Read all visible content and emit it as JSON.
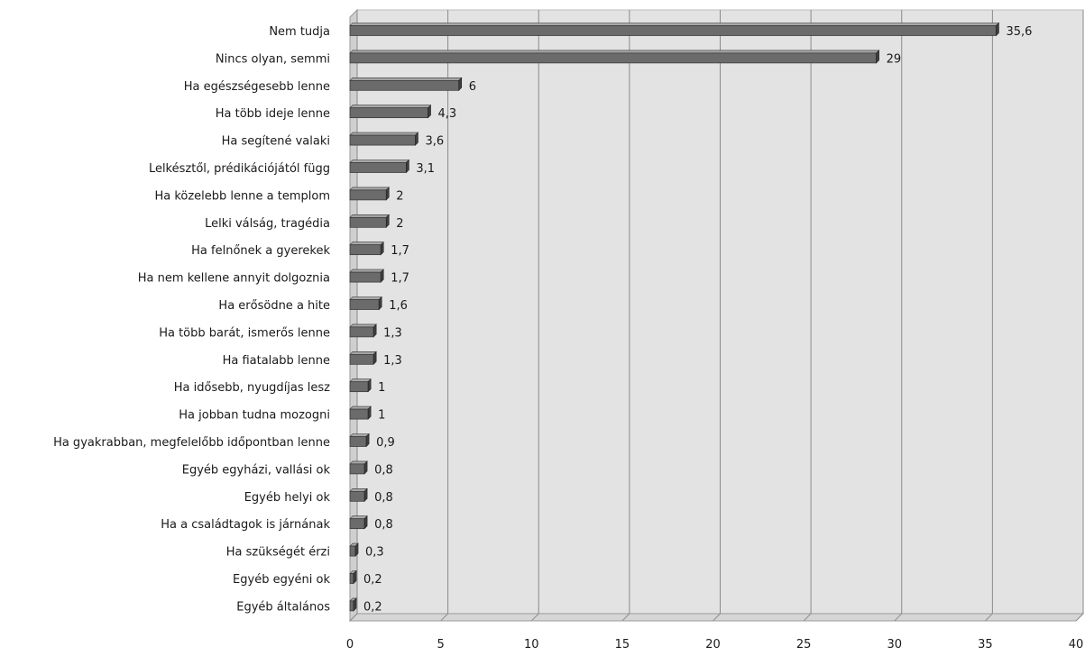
{
  "chart_data": {
    "type": "bar",
    "orientation": "horizontal",
    "categories": [
      "Nem tudja",
      "Nincs olyan, semmi",
      "Ha egészségesebb lenne",
      "Ha több ideje lenne",
      "Ha segítené valaki",
      "Lelkésztől, prédikációjától függ",
      "Ha közelebb lenne a templom",
      "Lelki válság, tragédia",
      "Ha felnőnek a gyerekek",
      "Ha nem kellene annyit dolgoznia",
      "Ha erősödne a hite",
      "Ha több barát, ismerős lenne",
      "Ha fiatalabb lenne",
      "Ha idősebb, nyugdíjas lesz",
      "Ha jobban tudna mozogni",
      "Ha gyakrabban, megfelelőbb időpontban lenne",
      "Egyéb egyházi, vallási ok",
      "Egyéb helyi ok",
      "Ha a családtagok is járnának",
      "Ha szükségét érzi",
      "Egyéb egyéni ok",
      "Egyéb általános"
    ],
    "values": [
      35.6,
      29,
      6,
      4.3,
      3.6,
      3.1,
      2,
      2,
      1.7,
      1.7,
      1.6,
      1.3,
      1.3,
      1,
      1,
      0.9,
      0.8,
      0.8,
      0.8,
      0.3,
      0.2,
      0.2
    ],
    "value_labels": [
      "35,6",
      "29",
      "6",
      "4,3",
      "3,6",
      "3,1",
      "2",
      "2",
      "1,7",
      "1,7",
      "1,6",
      "1,3",
      "1,3",
      "1",
      "1",
      "0,9",
      "0,8",
      "0,8",
      "0,8",
      "0,3",
      "0,2",
      "0,2"
    ],
    "xlim": [
      0,
      40
    ],
    "x_ticks": [
      0,
      5,
      10,
      15,
      20,
      25,
      30,
      35,
      40
    ],
    "grid": true,
    "legend": "none",
    "style": "3d",
    "colors": {
      "bar_front": "#6b6b6b",
      "bar_top": "#a8a8a8",
      "bar_end": "#3e3e3e",
      "plot_background": "#e3e3e3",
      "grid": "#8a8a8a"
    }
  }
}
